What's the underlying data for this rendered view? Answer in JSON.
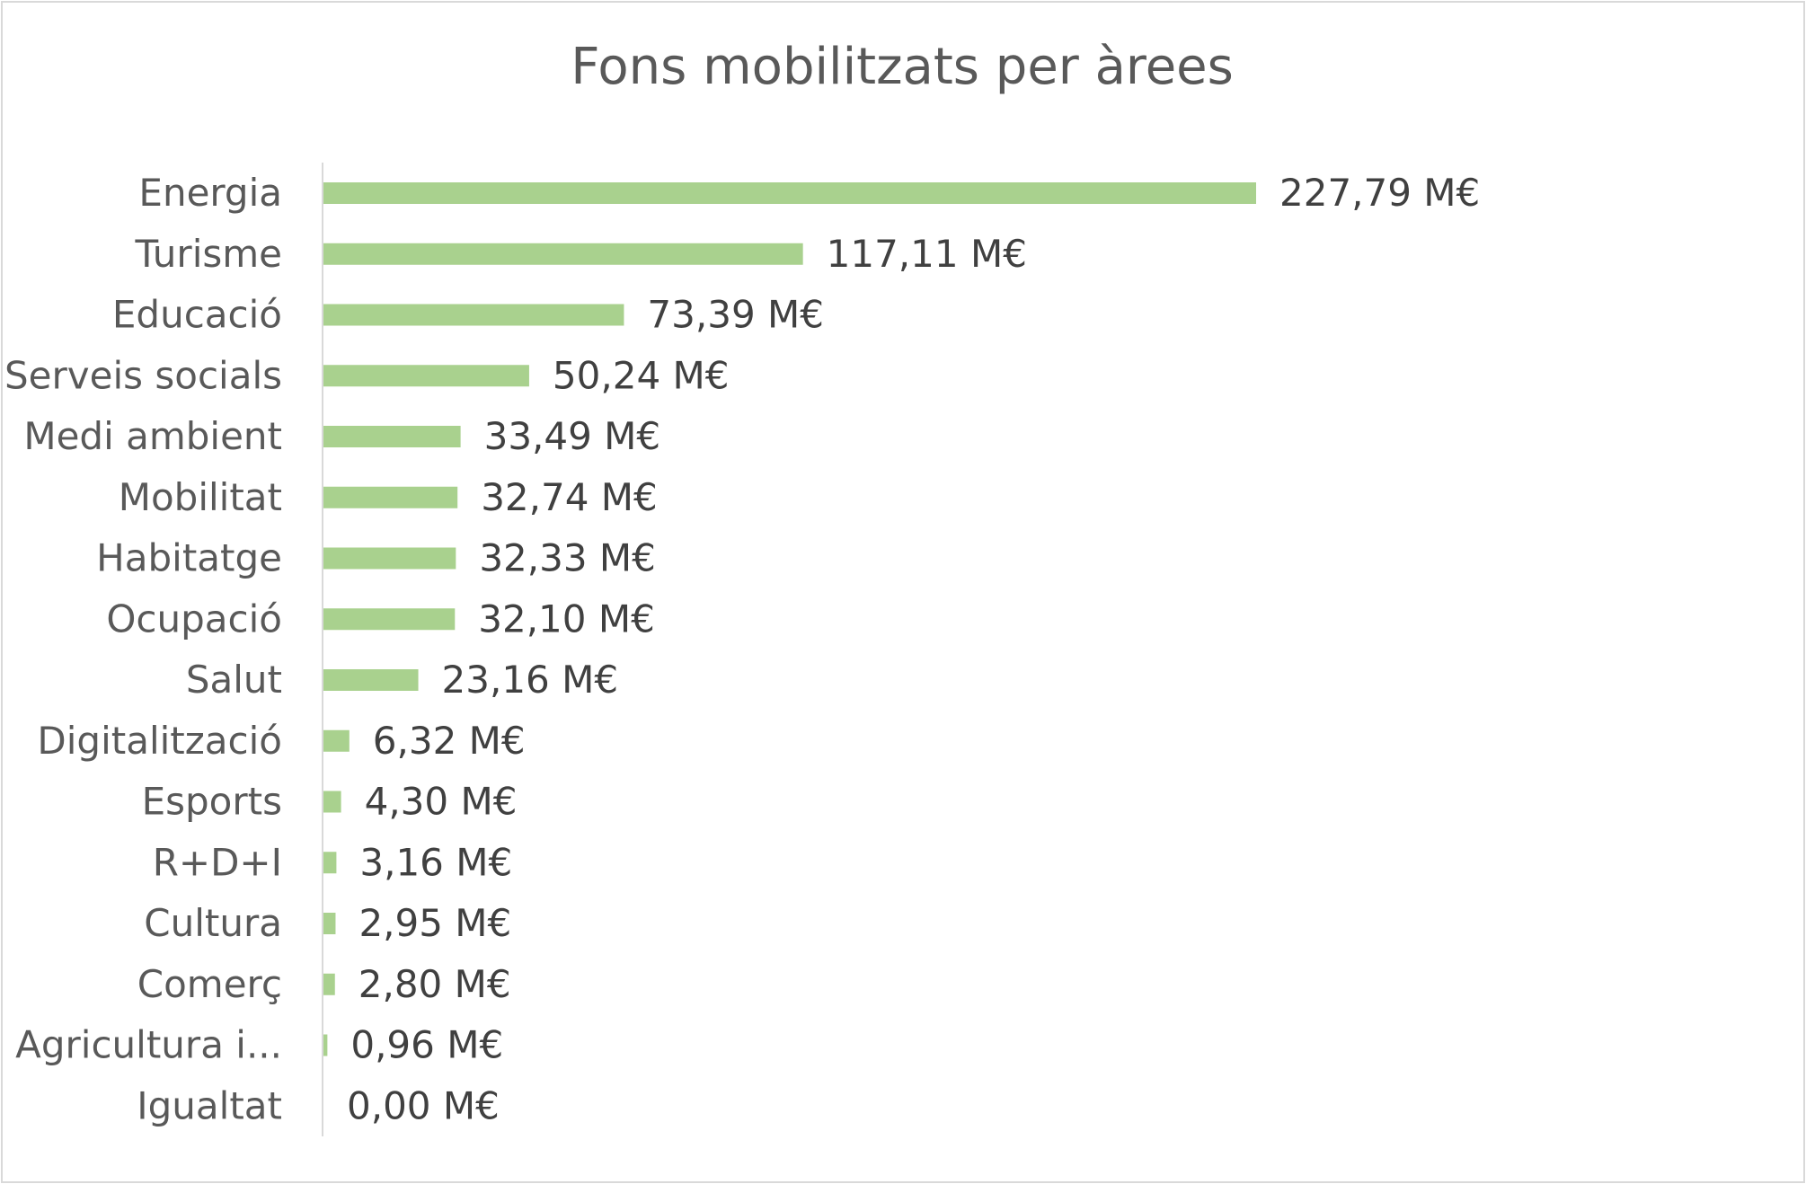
{
  "chart_data": {
    "type": "bar",
    "orientation": "horizontal",
    "title": "Fons mobilitzats per àrees",
    "xlabel": "",
    "ylabel": "",
    "unit": "M€",
    "categories": [
      "Energia",
      "Turisme",
      "Educació",
      "Serveis socials",
      "Medi ambient",
      "Mobilitat",
      "Habitatge",
      "Ocupació",
      "Salut",
      "Digitalització",
      "Esports",
      "R+D+I",
      "Cultura",
      "Comerç",
      "Agricultura i...",
      "Igualtat"
    ],
    "values": [
      227.79,
      117.11,
      73.39,
      50.24,
      33.49,
      32.74,
      32.33,
      32.1,
      23.16,
      6.32,
      4.3,
      3.16,
      2.95,
      2.8,
      0.96,
      0.0
    ],
    "data_labels": [
      "227,79 M€",
      "117,11 M€",
      "73,39 M€",
      "50,24 M€",
      "33,49 M€",
      "32,74 M€",
      "32,33 M€",
      "32,10 M€",
      "23,16 M€",
      "6,32 M€",
      "4,30 M€",
      "3,16 M€",
      "2,95 M€",
      "2,80 M€",
      "0,96 M€",
      "0,00 M€"
    ],
    "xlim": [
      0,
      227.79
    ],
    "grid": false,
    "legend": "none",
    "colors": {
      "bar": "#a9d18e",
      "axis": "#d9d9d9",
      "text": "#595959",
      "value_text": "#404040"
    }
  }
}
